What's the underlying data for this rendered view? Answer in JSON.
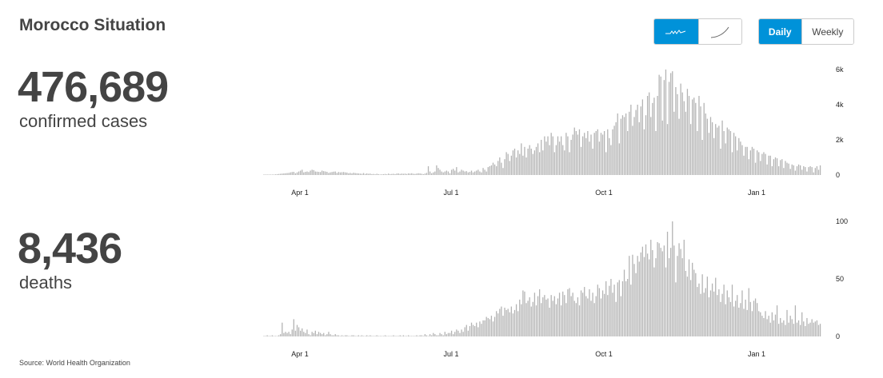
{
  "title": "Morocco Situation",
  "cases": {
    "total": "476,689",
    "label": "confirmed cases"
  },
  "deaths": {
    "total": "8,436",
    "label": "deaths"
  },
  "toggles": {
    "chart_style": {
      "options": [
        "bar-chart-icon",
        "cumulative-line-icon"
      ],
      "selected": 0
    },
    "period": {
      "options": [
        "Daily",
        "Weekly"
      ],
      "selected": "Daily"
    }
  },
  "colors": {
    "accent": "#0092d9",
    "bar": "#b3b3b3"
  },
  "source": "Source: World Health Organization",
  "chart_data": [
    {
      "type": "bar",
      "x_start": "2020-03-10",
      "x_step": "1 day",
      "ylim": [
        0,
        6000
      ],
      "yticks": [
        {
          "v": 0,
          "label": "0"
        },
        {
          "v": 2000,
          "label": "2k"
        },
        {
          "v": 4000,
          "label": "4k"
        },
        {
          "v": 6000,
          "label": "6k"
        }
      ],
      "xticks": [
        {
          "date": "2020-04-01",
          "label": "Apr 1"
        },
        {
          "date": "2020-07-01",
          "label": "Jul 1"
        },
        {
          "date": "2020-10-01",
          "label": "Oct 1"
        },
        {
          "date": "2021-01-01",
          "label": "Jan 1"
        }
      ],
      "values": [
        2,
        5,
        8,
        10,
        15,
        20,
        30,
        40,
        50,
        60,
        70,
        80,
        90,
        100,
        110,
        120,
        150,
        170,
        180,
        100,
        150,
        200,
        250,
        300,
        150,
        180,
        200,
        170,
        250,
        300,
        280,
        200,
        190,
        180,
        170,
        250,
        220,
        200,
        180,
        120,
        150,
        170,
        190,
        200,
        120,
        170,
        150,
        160,
        170,
        150,
        140,
        100,
        120,
        90,
        130,
        110,
        100,
        90,
        80,
        70,
        110,
        60,
        90,
        70,
        80,
        50,
        60,
        40,
        70,
        50,
        30,
        40,
        50,
        60,
        40,
        80,
        50,
        60,
        70,
        50,
        80,
        90,
        60,
        80,
        70,
        80,
        60,
        90,
        80,
        100,
        70,
        60,
        80,
        100,
        90,
        70,
        50,
        80,
        120,
        500,
        200,
        100,
        150,
        200,
        550,
        400,
        300,
        200,
        150,
        200,
        250,
        200,
        100,
        300,
        350,
        250,
        450,
        150,
        200,
        300,
        250,
        200,
        220,
        150,
        180,
        250,
        150,
        200,
        250,
        300,
        200,
        150,
        400,
        300,
        200,
        450,
        500,
        550,
        700,
        600,
        500,
        800,
        1000,
        700,
        400,
        900,
        1300,
        1200,
        800,
        1100,
        1400,
        1500,
        1000,
        1400,
        1200,
        1800,
        1100,
        1600,
        1000,
        1500,
        1700,
        1500,
        1200,
        1400,
        1600,
        1800,
        1300,
        2000,
        1400,
        2200,
        1900,
        2200,
        1700,
        2400,
        2200,
        1300,
        1700,
        2200,
        1900,
        2200,
        1700,
        1400,
        2400,
        2200,
        1300,
        2000,
        2300,
        2700,
        2500,
        2300,
        2600,
        1600,
        2200,
        2400,
        2100,
        2500,
        1900,
        2300,
        1500,
        2400,
        2500,
        2600,
        1900,
        2400,
        2300,
        2500,
        1300,
        2600,
        2100,
        1700,
        2600,
        2800,
        3000,
        3500,
        1800,
        3200,
        3400,
        3300,
        3500,
        2500,
        3600,
        4000,
        2800,
        3300,
        3700,
        4000,
        3000,
        3900,
        4300,
        2600,
        3400,
        4500,
        4700,
        3300,
        4100,
        4400,
        2500,
        4500,
        5700,
        5600,
        3100,
        5400,
        6000,
        2900,
        5300,
        5800,
        5900,
        3600,
        5000,
        4600,
        3200,
        5200,
        4700,
        4200,
        3600,
        4900,
        4500,
        2900,
        4300,
        4400,
        4100,
        2500,
        4500,
        3900,
        2000,
        4100,
        3500,
        3200,
        2400,
        3300,
        3000,
        2100,
        2900,
        2700,
        2800,
        1500,
        3100,
        2500,
        1800,
        2700,
        2600,
        2500,
        1300,
        2400,
        2200,
        1400,
        2100,
        1900,
        1700,
        1100,
        1600,
        1600,
        900,
        1400,
        1600,
        1500,
        700,
        1400,
        1300,
        800,
        1200,
        1300,
        1200,
        600,
        1100,
        1100,
        500,
        900,
        1000,
        950,
        500,
        850,
        900,
        400,
        800,
        700,
        650,
        350,
        600,
        550,
        250,
        500,
        600,
        550,
        300,
        500,
        450,
        200,
        450,
        500,
        450,
        150,
        400,
        500,
        300,
        550
      ]
    },
    {
      "type": "bar",
      "x_start": "2020-03-10",
      "x_step": "1 day",
      "ylim": [
        0,
        100
      ],
      "yticks": [
        {
          "v": 0,
          "label": "0"
        },
        {
          "v": 50,
          "label": "50"
        },
        {
          "v": 100,
          "label": "100"
        }
      ],
      "xticks": [
        {
          "date": "2020-04-01",
          "label": "Apr 1"
        },
        {
          "date": "2020-07-01",
          "label": "Jul 1"
        },
        {
          "date": "2020-10-01",
          "label": "Oct 1"
        },
        {
          "date": "2021-01-01",
          "label": "Jan 1"
        }
      ],
      "values": [
        0,
        0,
        1,
        0,
        0,
        1,
        0,
        0,
        0,
        1,
        2,
        12,
        3,
        4,
        3,
        4,
        2,
        6,
        15,
        5,
        10,
        8,
        5,
        7,
        4,
        3,
        6,
        2,
        1,
        4,
        3,
        5,
        2,
        4,
        3,
        2,
        3,
        1,
        2,
        4,
        2,
        1,
        1,
        2,
        1,
        1,
        0,
        1,
        0,
        1,
        1,
        0,
        0,
        1,
        1,
        0,
        0,
        1,
        0,
        1,
        0,
        0,
        1,
        0,
        1,
        0,
        0,
        0,
        1,
        0,
        0,
        0,
        0,
        1,
        0,
        0,
        0,
        0,
        1,
        0,
        0,
        0,
        1,
        0,
        1,
        0,
        0,
        1,
        0,
        0,
        0,
        0,
        1,
        0,
        1,
        1,
        0,
        2,
        1,
        0,
        2,
        1,
        3,
        2,
        1,
        1,
        3,
        2,
        1,
        4,
        2,
        3,
        3,
        5,
        2,
        4,
        6,
        5,
        3,
        6,
        4,
        8,
        10,
        5,
        9,
        12,
        10,
        9,
        12,
        8,
        13,
        11,
        14,
        14,
        17,
        16,
        15,
        18,
        13,
        17,
        22,
        20,
        24,
        26,
        18,
        25,
        23,
        24,
        21,
        26,
        20,
        23,
        28,
        22,
        32,
        28,
        40,
        39,
        29,
        31,
        34,
        26,
        30,
        38,
        27,
        35,
        41,
        29,
        34,
        36,
        32,
        33,
        25,
        36,
        31,
        35,
        28,
        33,
        38,
        27,
        39,
        36,
        29,
        41,
        42,
        35,
        38,
        31,
        29,
        34,
        27,
        40,
        38,
        43,
        35,
        33,
        41,
        31,
        38,
        29,
        35,
        45,
        42,
        33,
        40,
        37,
        48,
        36,
        44,
        50,
        38,
        45,
        30,
        47,
        49,
        35,
        48,
        58,
        48,
        50,
        70,
        45,
        71,
        63,
        55,
        70,
        65,
        73,
        78,
        69,
        80,
        72,
        67,
        84,
        75,
        60,
        68,
        82,
        81,
        77,
        74,
        79,
        60,
        91,
        68,
        77,
        100,
        79,
        47,
        70,
        81,
        76,
        68,
        84,
        57,
        52,
        67,
        49,
        64,
        58,
        55,
        43,
        46,
        37,
        54,
        38,
        42,
        52,
        34,
        40,
        46,
        39,
        51,
        36,
        41,
        30,
        37,
        45,
        28,
        40,
        34,
        30,
        45,
        26,
        31,
        36,
        25,
        29,
        40,
        24,
        32,
        23,
        42,
        30,
        22,
        31,
        33,
        29,
        22,
        21,
        18,
        16,
        22,
        15,
        18,
        12,
        21,
        14,
        19,
        27,
        11,
        16,
        12,
        14,
        10,
        23,
        12,
        18,
        15,
        11,
        27,
        12,
        14,
        10,
        21,
        13,
        9,
        16,
        11,
        12,
        15,
        12,
        13,
        14,
        10,
        11
      ]
    }
  ]
}
